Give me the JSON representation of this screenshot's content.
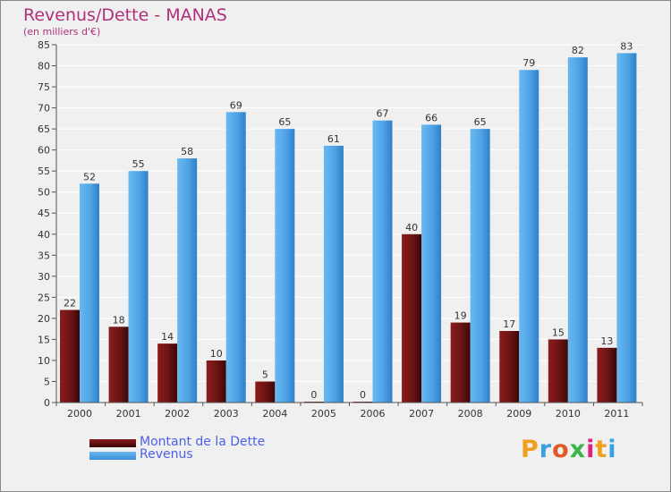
{
  "colors": {
    "dette": "#6b1414",
    "revenus": "#4fa3e6",
    "title": "#b0307a",
    "legend_text": "#4c5fe8"
  },
  "chart_data": {
    "type": "bar",
    "title": "Revenus/Dette - MANAS",
    "subtitle": "(en milliers d'€)",
    "xlabel": "",
    "ylabel": "",
    "ylim": [
      0,
      85
    ],
    "yticks": [
      0,
      5,
      10,
      15,
      20,
      25,
      30,
      35,
      40,
      45,
      50,
      55,
      60,
      65,
      70,
      75,
      80,
      85
    ],
    "categories": [
      "2000",
      "2001",
      "2002",
      "2003",
      "2004",
      "2005",
      "2006",
      "2007",
      "2008",
      "2009",
      "2010",
      "2011"
    ],
    "series": [
      {
        "name": "Montant de la Dette",
        "values": [
          22,
          18,
          14,
          10,
          5,
          0,
          0,
          40,
          19,
          17,
          15,
          13
        ]
      },
      {
        "name": "Revenus",
        "values": [
          52,
          55,
          58,
          69,
          65,
          61,
          67,
          66,
          65,
          79,
          82,
          83
        ]
      }
    ],
    "legend": {
      "position": "bottom-left"
    }
  },
  "logo": {
    "text": "Proxiti"
  }
}
